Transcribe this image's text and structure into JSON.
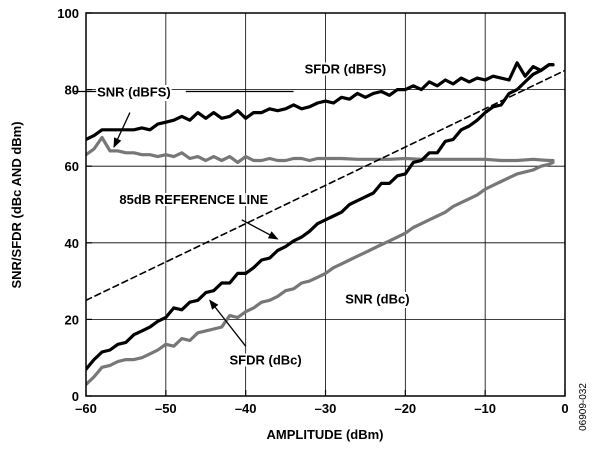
{
  "chart_data": {
    "type": "line",
    "xlabel": "AMPLITUDE (dBm)",
    "ylabel": "SNR/SFDR (dBc AND dBm)",
    "xlim": [
      -60,
      0
    ],
    "ylim": [
      0,
      100
    ],
    "x_ticks": [
      -60,
      -50,
      -40,
      -30,
      -20,
      -10,
      0
    ],
    "x_tick_labels": [
      "–60",
      "–50",
      "–40",
      "–30",
      "–20",
      "–10",
      "0"
    ],
    "y_ticks": [
      0,
      20,
      40,
      60,
      80,
      100
    ],
    "y_tick_labels": [
      "0",
      "20",
      "40",
      "60",
      "80",
      "100"
    ],
    "grid": true,
    "series": [
      {
        "name": "SFDR (dBFS)",
        "color": "#000000",
        "style": "solid",
        "x": [
          -60,
          -59,
          -58,
          -57,
          -56,
          -55,
          -54,
          -53,
          -52,
          -51,
          -50,
          -49,
          -48,
          -47,
          -46,
          -45,
          -44,
          -43,
          -42,
          -41,
          -40,
          -39,
          -38,
          -37,
          -36,
          -35,
          -34,
          -33,
          -32,
          -31,
          -30,
          -29,
          -28,
          -27,
          -26,
          -25,
          -24,
          -23,
          -22,
          -21,
          -20,
          -19,
          -18,
          -17,
          -16,
          -15,
          -14,
          -13,
          -12,
          -11,
          -10,
          -9,
          -8,
          -7,
          -6,
          -5,
          -4,
          -3,
          -2,
          -1.5
        ],
        "y": [
          67,
          68,
          69.5,
          69.5,
          69.5,
          69.5,
          69.5,
          70,
          69.5,
          71,
          71.5,
          72,
          73,
          72,
          74,
          72.5,
          74,
          72.5,
          73,
          74.5,
          72.5,
          74,
          74,
          75,
          74.5,
          75,
          76,
          75,
          75.5,
          76.5,
          77,
          76.5,
          78,
          77.5,
          79,
          78,
          79,
          79.5,
          78.5,
          80,
          80,
          81,
          80,
          82,
          81,
          82.5,
          81.5,
          83,
          82,
          83,
          82.5,
          83.5,
          83,
          82.5,
          87,
          83.5,
          86,
          85,
          86.5,
          86.5
        ]
      },
      {
        "name": "SNR (dBFS)",
        "color": "#777777",
        "style": "solid",
        "x": [
          -60,
          -59,
          -58,
          -57,
          -56,
          -55,
          -54,
          -53,
          -52,
          -51,
          -50,
          -49,
          -48,
          -47,
          -46,
          -45,
          -44,
          -43,
          -42,
          -41,
          -40,
          -39,
          -38,
          -37,
          -36,
          -35,
          -34,
          -33,
          -32,
          -31,
          -30,
          -28,
          -26,
          -24,
          -22,
          -20,
          -18,
          -16,
          -14,
          -12,
          -10,
          -8,
          -6,
          -4,
          -2,
          -1.5
        ],
        "y": [
          63,
          64.5,
          67.5,
          64,
          64,
          63.5,
          63.5,
          63,
          63,
          62.5,
          63,
          62.5,
          63.5,
          62,
          62.5,
          61.5,
          62.5,
          61.5,
          62.5,
          61,
          62.5,
          61.5,
          61.5,
          62,
          61.5,
          61.5,
          62,
          62,
          61.5,
          62,
          62,
          62,
          61.8,
          61.8,
          61.8,
          62,
          61.8,
          61.8,
          61.8,
          61.8,
          61.8,
          61.5,
          61.5,
          61.8,
          61.5,
          61.5
        ]
      },
      {
        "name": "SFDR (dBc)",
        "color": "#000000",
        "style": "solid",
        "x": [
          -60,
          -59,
          -58,
          -57,
          -56,
          -55,
          -54,
          -53,
          -52,
          -51,
          -50,
          -49,
          -48,
          -47,
          -46,
          -45,
          -44,
          -43,
          -42,
          -41,
          -40,
          -39,
          -38,
          -37,
          -36,
          -35,
          -34,
          -33,
          -32,
          -31,
          -30,
          -29,
          -28,
          -27,
          -26,
          -25,
          -24,
          -23,
          -22,
          -21,
          -20,
          -19,
          -18,
          -17,
          -16,
          -15,
          -14,
          -13,
          -12,
          -11,
          -10,
          -9,
          -8,
          -7,
          -6,
          -5,
          -4,
          -3,
          -2,
          -1.5
        ],
        "y": [
          7,
          9.5,
          11.5,
          12,
          13.5,
          14,
          16,
          17,
          18,
          19.5,
          20.5,
          23,
          22.5,
          24.5,
          25,
          27,
          27.5,
          29.5,
          29.5,
          32,
          32,
          33.5,
          35.5,
          36,
          38,
          39,
          40.5,
          41.5,
          43,
          45,
          46,
          47,
          48,
          50,
          51,
          52,
          53,
          55.5,
          55.5,
          57.5,
          58,
          61,
          61.5,
          63.5,
          63.5,
          66.5,
          67,
          69.5,
          70.5,
          72,
          74,
          75.5,
          76,
          79,
          80,
          82,
          84,
          85,
          86.5,
          86.5
        ]
      },
      {
        "name": "SNR (dBc)",
        "color": "#777777",
        "style": "solid",
        "x": [
          -60,
          -59,
          -58,
          -57,
          -56,
          -55,
          -54,
          -53,
          -52,
          -51,
          -50,
          -49,
          -48,
          -47,
          -46,
          -45,
          -44,
          -43,
          -42,
          -41,
          -40,
          -39,
          -38,
          -37,
          -36,
          -35,
          -34,
          -33,
          -32,
          -31,
          -30,
          -29,
          -28,
          -27,
          -26,
          -25,
          -24,
          -23,
          -22,
          -21,
          -20,
          -19,
          -18,
          -17,
          -16,
          -15,
          -14,
          -13,
          -12,
          -11,
          -10,
          -9,
          -8,
          -7,
          -6,
          -5,
          -4,
          -3,
          -2,
          -1.5
        ],
        "y": [
          3,
          5,
          7.5,
          8,
          9,
          9.5,
          9.5,
          10,
          11,
          12,
          13.5,
          13,
          15,
          14.5,
          16.5,
          17,
          17.5,
          18,
          21,
          20.5,
          22,
          23,
          24.5,
          25,
          26,
          27.5,
          28,
          29.5,
          30,
          31,
          32,
          33.5,
          34.5,
          35.5,
          36.5,
          37.5,
          38.5,
          39.5,
          40.5,
          41.5,
          42.5,
          44,
          45,
          46,
          47,
          48,
          49.5,
          50.5,
          51.5,
          52.5,
          54,
          55,
          56,
          57,
          58,
          58.5,
          59,
          60,
          60.5,
          61
        ]
      },
      {
        "name": "85dB REFERENCE LINE",
        "color": "#000000",
        "style": "dashed",
        "x": [
          -60,
          0
        ],
        "y": [
          25,
          85
        ]
      }
    ],
    "annotations": [
      {
        "text": "SFDR (dBFS)",
        "x": -27.5,
        "y": 85.5,
        "anchor": "middle"
      },
      {
        "text": "SNR (dBFS)",
        "x": -54,
        "y": 79.5,
        "anchor": "middle"
      },
      {
        "text": "85dB REFERENCE LINE",
        "x": -46.5,
        "y": 51.5,
        "anchor": "middle"
      },
      {
        "text": "SNR (dBc)",
        "x": -23.5,
        "y": 25.5,
        "anchor": "middle"
      },
      {
        "text": "SFDR (dBc)",
        "x": -37.5,
        "y": 9.5,
        "anchor": "middle"
      }
    ],
    "arrows": [
      {
        "from": [
          -61.5,
          79.5
        ],
        "to": [
          -56.5,
          79.5
        ],
        "head": false
      },
      {
        "from": [
          -47.5,
          79.5
        ],
        "to": [
          -34,
          79.5
        ],
        "head": false
      },
      {
        "from": [
          -54.5,
          74
        ],
        "to": [
          -56.5,
          65
        ],
        "head": true
      },
      {
        "from": [
          -40.5,
          46
        ],
        "to": [
          -36,
          41
        ],
        "head": true
      },
      {
        "from": [
          -40,
          13
        ],
        "to": [
          -44.5,
          25
        ],
        "head": true
      }
    ]
  },
  "figure_id": "06909-032"
}
